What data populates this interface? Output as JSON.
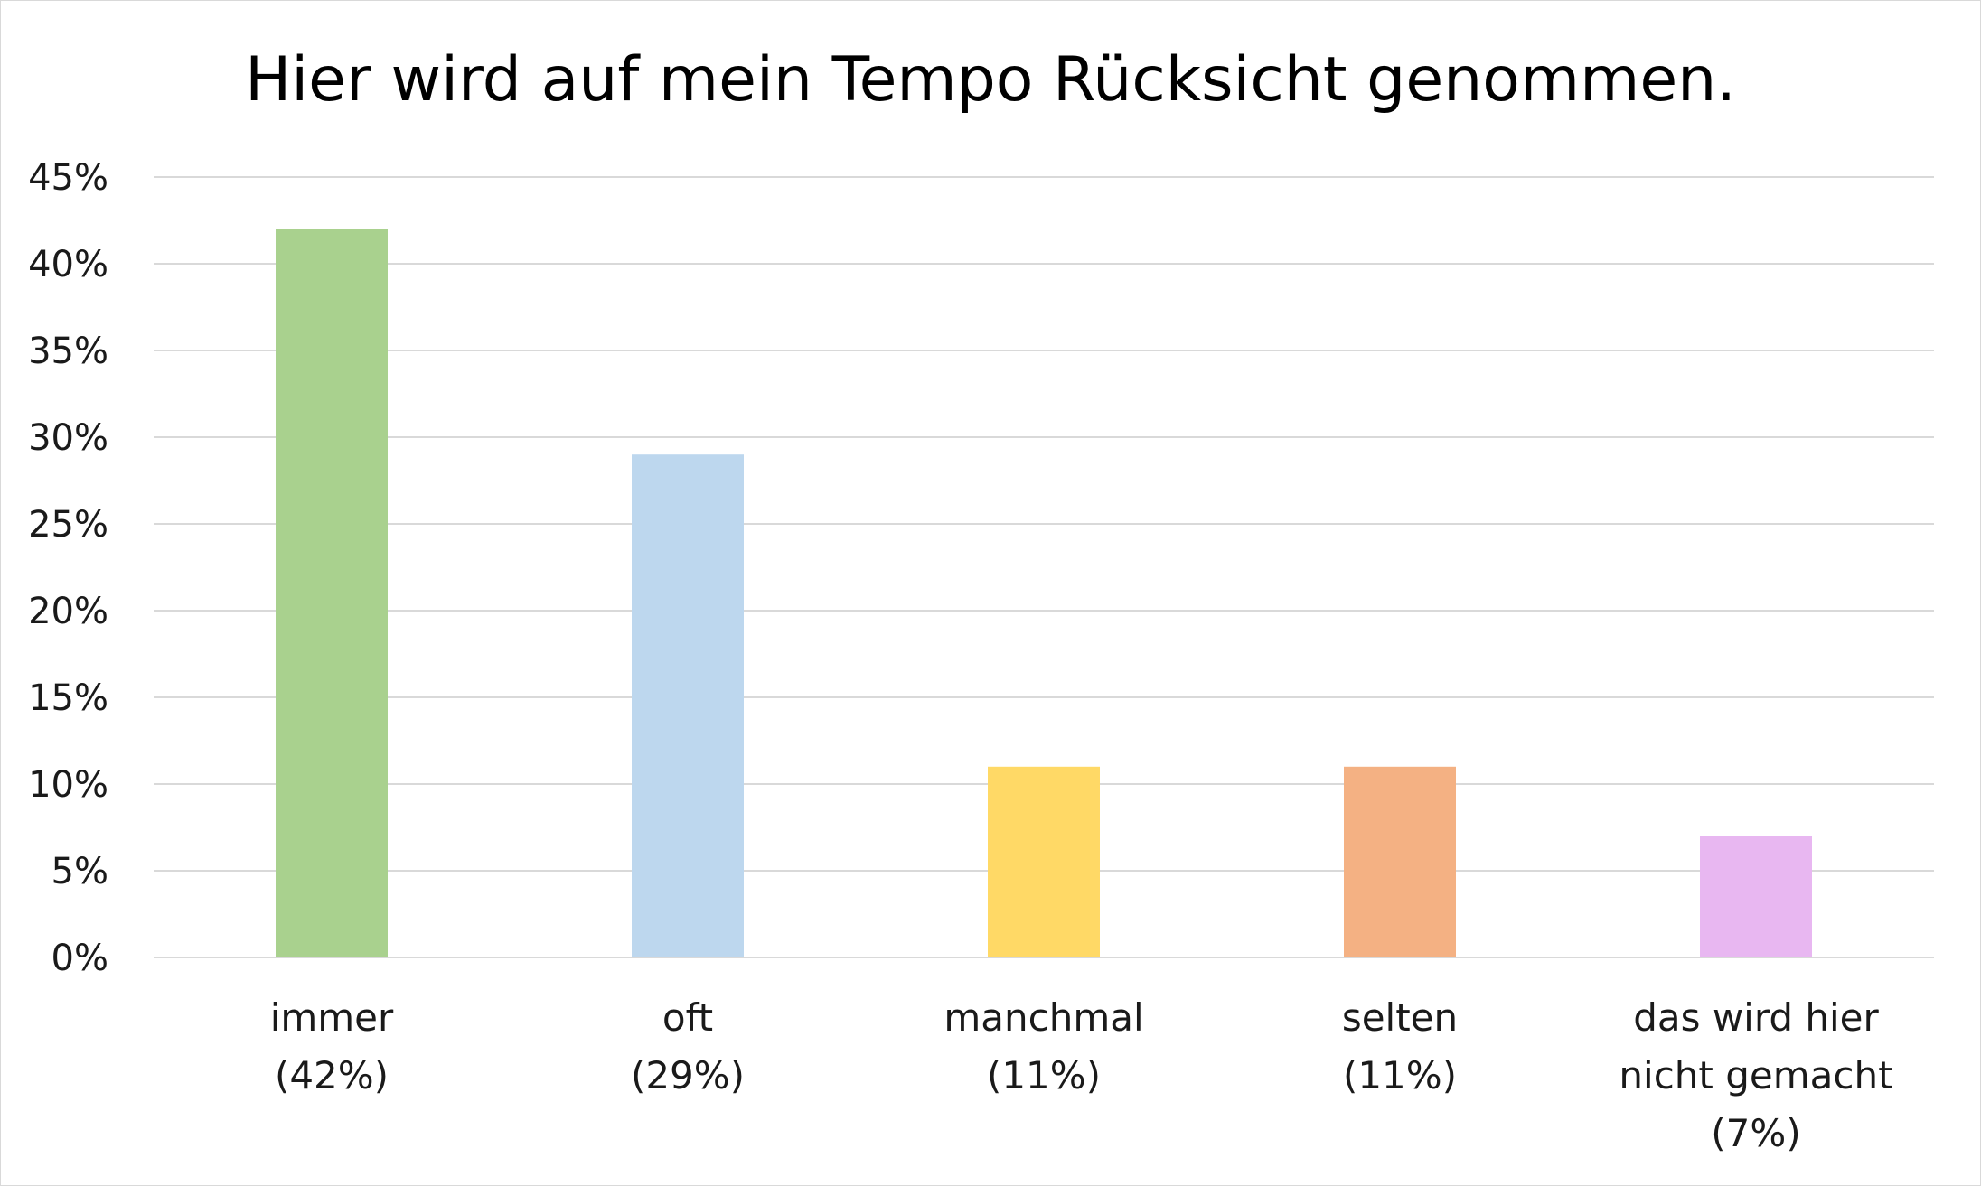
{
  "chart_data": {
    "type": "bar",
    "title": "Hier wird auf mein Tempo Rücksicht genommen.",
    "xlabel": "",
    "ylabel": "",
    "categories": [
      [
        "immer",
        "(42%)"
      ],
      [
        "oft",
        "(29%)"
      ],
      [
        "manchmal",
        "(11%)"
      ],
      [
        "selten",
        "(11%)"
      ],
      [
        "das wird hier",
        "nicht gemacht",
        "(7%)"
      ]
    ],
    "values": [
      42,
      29,
      11,
      11,
      7
    ],
    "colors": [
      "#a9d18e",
      "#bdd7ee",
      "#ffd966",
      "#f4b183",
      "#e8b7f1"
    ],
    "ylim": [
      0,
      45
    ],
    "yticks": [
      0,
      5,
      10,
      15,
      20,
      25,
      30,
      35,
      40,
      45
    ],
    "ytick_labels": [
      "0%",
      "5%",
      "10%",
      "15%",
      "20%",
      "25%",
      "30%",
      "35%",
      "40%",
      "45%"
    ],
    "grid": true,
    "gridline_color": "#d9d9d9",
    "legend": "none"
  }
}
